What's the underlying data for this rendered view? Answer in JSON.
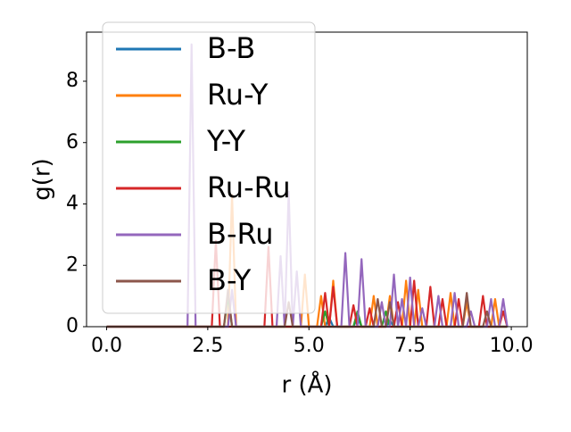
{
  "chart_data": {
    "type": "line",
    "x_label": "r (Å)",
    "y_label": "g(r)",
    "x": [
      0,
      0.1,
      0.2,
      0.3,
      0.4,
      0.5,
      0.6,
      0.7,
      0.8,
      0.9,
      1,
      1.1,
      1.2,
      1.3,
      1.4,
      1.5,
      1.6,
      1.7,
      1.8,
      1.9,
      2,
      2.1,
      2.2,
      2.3,
      2.4,
      2.5,
      2.6,
      2.7,
      2.8,
      2.9,
      3,
      3.1,
      3.2,
      3.3,
      3.4,
      3.5,
      3.6,
      3.7,
      3.8,
      3.9,
      4,
      4.1,
      4.2,
      4.3,
      4.4,
      4.5,
      4.6,
      4.7,
      4.8,
      4.9,
      5,
      5.1,
      5.2,
      5.3,
      5.4,
      5.5,
      5.6,
      5.7,
      5.8,
      5.9,
      6,
      6.1,
      6.2,
      6.3,
      6.4,
      6.5,
      6.6,
      6.7,
      6.8,
      6.9,
      7,
      7.1,
      7.2,
      7.3,
      7.4,
      7.5,
      7.6,
      7.7,
      7.8,
      7.9,
      8,
      8.1,
      8.2,
      8.3,
      8.4,
      8.5,
      8.6,
      8.7,
      8.8,
      8.9,
      9,
      9.1,
      9.2,
      9.3,
      9.4,
      9.5,
      9.6,
      9.7,
      9.8,
      9.9
    ],
    "series": [
      {
        "name": "B-B",
        "color": "#1f77b4",
        "values": [
          0,
          0,
          0,
          0,
          0,
          0,
          0,
          0,
          0,
          0,
          0,
          0,
          0,
          0,
          0,
          0,
          0,
          0,
          0,
          0,
          0,
          0,
          0,
          0,
          0,
          0,
          0,
          0,
          0,
          0,
          0,
          0,
          0,
          0,
          0,
          0,
          0,
          0,
          0,
          0,
          0,
          0,
          0,
          0,
          0,
          0,
          0,
          0,
          0,
          0,
          0,
          0,
          0,
          0,
          0,
          0.3,
          0,
          0,
          0,
          0,
          0,
          0,
          0.3,
          0,
          0,
          0,
          0,
          0,
          0,
          0,
          0.2,
          0,
          0,
          0,
          0,
          0,
          0,
          0,
          0,
          0,
          0,
          0,
          0,
          0,
          0,
          0,
          0,
          0,
          0,
          0,
          0,
          0,
          0,
          0,
          0,
          0,
          0,
          0,
          0,
          0
        ]
      },
      {
        "name": "Ru-Y",
        "color": "#ff7f0e",
        "values": [
          0,
          0,
          0,
          0,
          0,
          0,
          0,
          0,
          0,
          0,
          0,
          0,
          0,
          0,
          0,
          0,
          0,
          0,
          0,
          0,
          0,
          0,
          0,
          0,
          0,
          0,
          0,
          0,
          0,
          0,
          0,
          4.3,
          0,
          0,
          0,
          0,
          0,
          0,
          0,
          0,
          0,
          0,
          0,
          0,
          0,
          0,
          0,
          0,
          0,
          1.7,
          0,
          0,
          0,
          1.0,
          0,
          0,
          1.5,
          0,
          0,
          0,
          0,
          0,
          0,
          0,
          0,
          0,
          1.0,
          0,
          0,
          0,
          1.0,
          0,
          0,
          0,
          1.5,
          0,
          0,
          1.2,
          0,
          0,
          0,
          0,
          0,
          0,
          0,
          1.1,
          0,
          0,
          0,
          0.8,
          0,
          0,
          0,
          0,
          0,
          0,
          0.9,
          0,
          0,
          0
        ]
      },
      {
        "name": "Y-Y",
        "color": "#2ca02c",
        "values": [
          0,
          0,
          0,
          0,
          0,
          0,
          0,
          0,
          0,
          0,
          0,
          0,
          0,
          0,
          0,
          0,
          0,
          0,
          0,
          0,
          0,
          0,
          0,
          0,
          0,
          0,
          0,
          0,
          0,
          0,
          1.0,
          0,
          0,
          0,
          0,
          0,
          0,
          0,
          0,
          0,
          0,
          0,
          0,
          0,
          0,
          0,
          0,
          0,
          0,
          0,
          0,
          0,
          0,
          0,
          0.5,
          0,
          0,
          0,
          0,
          0,
          0,
          0,
          0.5,
          0,
          0,
          0,
          0,
          0,
          0,
          0.5,
          0,
          0,
          0,
          0,
          0,
          0,
          0,
          0,
          0,
          0,
          0,
          0,
          0,
          0,
          0,
          0,
          0,
          0,
          0,
          0,
          0,
          0,
          0,
          0,
          0,
          0,
          0,
          0,
          0,
          0
        ]
      },
      {
        "name": "Ru-Ru",
        "color": "#d62728",
        "values": [
          0,
          0,
          0,
          0,
          0,
          0,
          0,
          0,
          0,
          0,
          0,
          0,
          0,
          0,
          0,
          0,
          0,
          0,
          0,
          0,
          0,
          0,
          0,
          0,
          0,
          0,
          0,
          2.8,
          0,
          0,
          0,
          0,
          0,
          0,
          0,
          0,
          0,
          0,
          0,
          0,
          2.6,
          0,
          0,
          0,
          0,
          0,
          0,
          0,
          0,
          0,
          0,
          0,
          0,
          0,
          1.1,
          0,
          1.3,
          0,
          0,
          0,
          0,
          0.7,
          0,
          0,
          0,
          0.6,
          0,
          0,
          0,
          0,
          0,
          0,
          0.8,
          0,
          0,
          0,
          1.5,
          0,
          0,
          0,
          1.3,
          0,
          0,
          0.9,
          0,
          0,
          0,
          0.9,
          0,
          0,
          0,
          0,
          0,
          1.0,
          0,
          0,
          0,
          0,
          0.5,
          0
        ]
      },
      {
        "name": "B-Ru",
        "color": "#9467bd",
        "values": [
          0,
          0,
          0,
          0,
          0,
          0,
          0,
          0,
          0,
          0,
          0,
          0,
          0,
          0,
          0,
          0,
          0,
          0,
          0,
          0,
          0,
          9.2,
          0,
          0,
          0,
          0,
          0,
          0,
          0,
          0,
          0,
          1.2,
          0,
          0,
          0,
          0,
          0,
          0,
          0,
          0,
          0,
          0,
          0,
          2.3,
          0,
          4.4,
          0,
          1.8,
          0,
          0,
          0,
          0,
          0,
          0,
          0,
          0,
          0,
          0,
          0,
          2.4,
          0,
          0,
          0,
          2.2,
          0,
          0,
          0,
          0,
          0.8,
          0,
          0,
          1.7,
          0,
          0.9,
          0,
          1.6,
          0,
          0,
          0.6,
          0,
          0,
          0,
          1.0,
          0,
          0,
          0,
          1.1,
          0,
          0,
          0,
          0.5,
          0,
          0,
          0,
          0,
          0.9,
          0,
          0,
          0.9,
          0
        ]
      },
      {
        "name": "B-Y",
        "color": "#8c564b",
        "values": [
          0,
          0,
          0,
          0,
          0,
          0,
          0,
          0,
          0,
          0,
          0,
          0,
          0,
          0,
          0,
          0,
          0,
          0,
          0,
          0,
          0,
          0,
          0,
          0,
          0,
          0,
          0,
          0,
          0,
          0,
          1.2,
          0,
          0,
          0,
          0,
          0,
          0,
          0,
          0,
          0,
          0,
          0,
          0,
          0,
          0,
          0.8,
          0,
          0,
          0,
          0,
          0,
          0,
          0,
          0,
          0,
          0,
          0,
          0,
          0,
          0,
          0,
          0,
          0,
          0,
          0,
          0,
          0,
          0.9,
          0,
          0,
          0.8,
          0,
          0,
          0,
          0,
          0,
          0,
          0,
          0,
          0,
          0,
          0,
          0,
          0,
          0,
          0,
          0,
          0,
          0,
          1.1,
          0,
          0,
          0,
          0,
          0.5,
          0,
          0,
          0,
          0,
          0
        ]
      }
    ],
    "xlim": [
      -0.495,
      10.395
    ],
    "ylim": [
      0,
      9.6
    ],
    "xticks": [
      {
        "value": 0,
        "label": "0.0"
      },
      {
        "value": 2.5,
        "label": "2.5"
      },
      {
        "value": 5,
        "label": "5.0"
      },
      {
        "value": 7.5,
        "label": "7.5"
      },
      {
        "value": 10,
        "label": "10.0"
      }
    ],
    "yticks": [
      0,
      2,
      4,
      6,
      8
    ],
    "legend": "upper left"
  }
}
